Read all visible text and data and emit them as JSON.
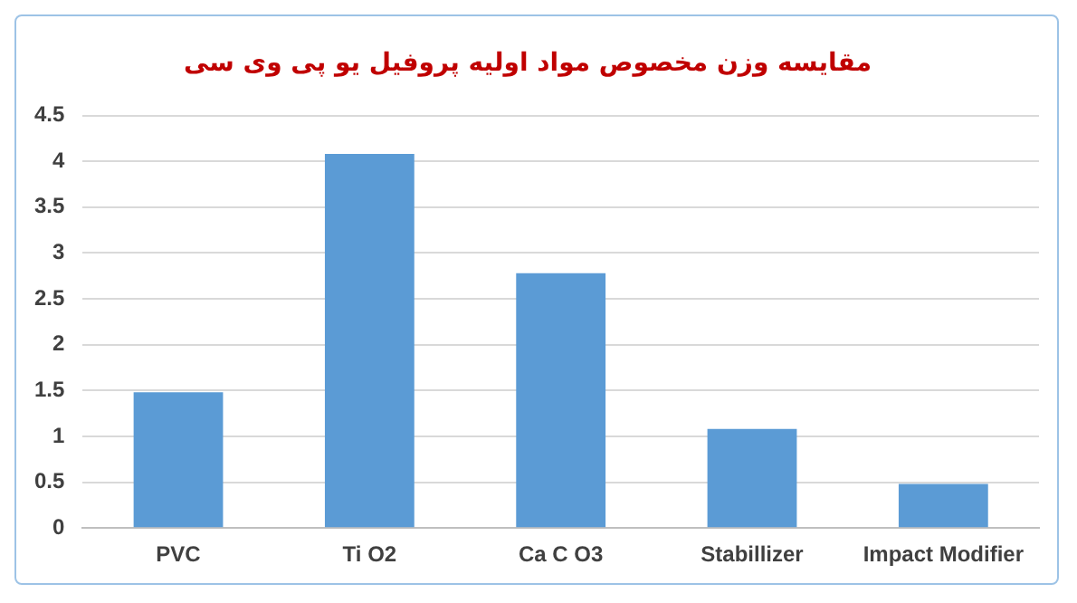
{
  "chart_data": {
    "type": "bar",
    "title": "مقایسه وزن مخصوص مواد اولیه پروفیل یو پی وی سی",
    "categories": [
      "PVC",
      "Ti O2",
      "Ca C O3",
      "Stabillizer",
      "Impact Modifier"
    ],
    "values": [
      1.48,
      4.08,
      2.78,
      1.08,
      0.48
    ],
    "color": "#5b9bd5",
    "ylim": [
      0,
      4.5
    ],
    "yticks": [
      0,
      0.5,
      1,
      1.5,
      2,
      2.5,
      3,
      3.5,
      4,
      4.5
    ],
    "grid": "y",
    "legend": false
  }
}
